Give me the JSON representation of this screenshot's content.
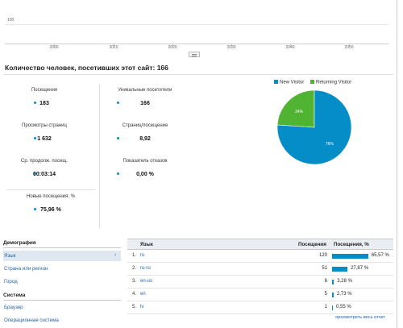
{
  "top_chart": {
    "y_tick": "100",
    "x_ticks": [
      "2000",
      "2010",
      "2020",
      "2030",
      "2040",
      "2050"
    ]
  },
  "summary": {
    "title": "Количество человек, посетивших этот сайт: 166",
    "metrics": [
      {
        "label": "Посещения",
        "value": "183"
      },
      {
        "label": "Уникальные посетители",
        "value": "166"
      },
      {
        "label": "Просмотры страниц",
        "value": "1 632"
      },
      {
        "label": "Страниц/посещение",
        "value": "8,92"
      },
      {
        "label": "Ср. продолж. посещ.",
        "value": "00:03:14"
      },
      {
        "label": "Показатель отказов",
        "value": "0,00 %"
      },
      {
        "label": "Новые посещения, %",
        "value": "75,96 %"
      }
    ]
  },
  "pie": {
    "legend": [
      {
        "label": "New Visitor",
        "color": "#058dc7"
      },
      {
        "label": "Returning Visitor",
        "color": "#50b432"
      }
    ],
    "slices": [
      {
        "name": "New Visitor",
        "value": 76,
        "label": "76%",
        "color": "#058dc7"
      },
      {
        "name": "Returning Visitor",
        "value": 24,
        "label": "24%",
        "color": "#50b432"
      }
    ]
  },
  "sidebar": {
    "demography_title": "Демография",
    "demography_items": [
      "Язык",
      "Страна или регион",
      "Город"
    ],
    "system_title": "Система",
    "system_items": [
      "Браузер",
      "Операционная система"
    ]
  },
  "table": {
    "col_lang": "Язык",
    "col_visits": "Посещения",
    "col_pct": "Посещения, %",
    "rows": [
      {
        "num": "1.",
        "lang": "ru",
        "visits": "120",
        "pct": "65,57 %",
        "share": 65.57
      },
      {
        "num": "2.",
        "lang": "ru-ru",
        "visits": "51",
        "pct": "27,87 %",
        "share": 27.87
      },
      {
        "num": "3.",
        "lang": "en-us",
        "visits": "6",
        "pct": "3,28 %",
        "share": 3.28
      },
      {
        "num": "4.",
        "lang": "en",
        "visits": "5",
        "pct": "2,73 %",
        "share": 2.73
      },
      {
        "num": "5.",
        "lang": "lv",
        "visits": "1",
        "pct": "0,55 %",
        "share": 0.55
      }
    ],
    "full_report_link": "просмотреть весь отчет"
  },
  "colors": {
    "accent": "#058dc7",
    "secondary": "#50b432",
    "link": "#2462a6"
  }
}
